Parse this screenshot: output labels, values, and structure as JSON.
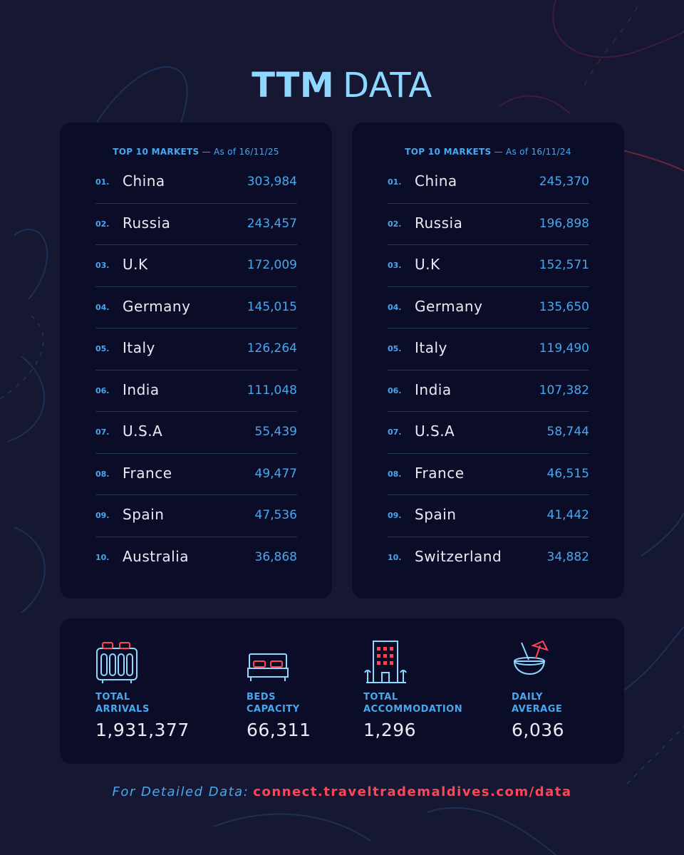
{
  "header": {
    "title_bold": "TTM",
    "title_light": "DATA"
  },
  "panels": [
    {
      "heading": "TOP 10 MARKETS",
      "as_of": "— As of 16/11/25",
      "rows": [
        {
          "rank": "01.",
          "country": "China",
          "value": "303,984"
        },
        {
          "rank": "02.",
          "country": "Russia",
          "value": "243,457"
        },
        {
          "rank": "03.",
          "country": "U.K",
          "value": "172,009"
        },
        {
          "rank": "04.",
          "country": "Germany",
          "value": "145,015"
        },
        {
          "rank": "05.",
          "country": "Italy",
          "value": "126,264"
        },
        {
          "rank": "06.",
          "country": "India",
          "value": "111,048"
        },
        {
          "rank": "07.",
          "country": "U.S.A",
          "value": "55,439"
        },
        {
          "rank": "08.",
          "country": "France",
          "value": "49,477"
        },
        {
          "rank": "09.",
          "country": "Spain",
          "value": "47,536"
        },
        {
          "rank": "10.",
          "country": "Australia",
          "value": "36,868"
        }
      ]
    },
    {
      "heading": "TOP 10 MARKETS",
      "as_of": "— As of 16/11/24",
      "rows": [
        {
          "rank": "01.",
          "country": "China",
          "value": "245,370"
        },
        {
          "rank": "02.",
          "country": "Russia",
          "value": "196,898"
        },
        {
          "rank": "03.",
          "country": "U.K",
          "value": "152,571"
        },
        {
          "rank": "04.",
          "country": "Germany",
          "value": "135,650"
        },
        {
          "rank": "05.",
          "country": "Italy",
          "value": "119,490"
        },
        {
          "rank": "06.",
          "country": "India",
          "value": "107,382"
        },
        {
          "rank": "07.",
          "country": "U.S.A",
          "value": "58,744"
        },
        {
          "rank": "08.",
          "country": "France",
          "value": "46,515"
        },
        {
          "rank": "09.",
          "country": "Spain",
          "value": "41,442"
        },
        {
          "rank": "10.",
          "country": "Switzerland",
          "value": "34,882"
        }
      ]
    }
  ],
  "stats": [
    {
      "icon": "luggage-icon",
      "label_line1": "TOTAL",
      "label_line2": "ARRIVALS",
      "value": "1,931,377"
    },
    {
      "icon": "bed-icon",
      "label_line1": "BEDS",
      "label_line2": "CAPACITY",
      "value": "66,311"
    },
    {
      "icon": "hotel-building-icon",
      "label_line1": "TOTAL",
      "label_line2": "ACCOMMODATION",
      "value": "1,296"
    },
    {
      "icon": "coconut-drink-icon",
      "label_line1": "DAILY",
      "label_line2": "AVERAGE",
      "value": "6,036"
    }
  ],
  "footer": {
    "label": "For Detailed Data:",
    "link": "connect.traveltrademaldives.com/data"
  },
  "colors": {
    "background": "#161833",
    "panel": "#0a0c28",
    "accent_blue": "#48a8ee",
    "title_blue": "#8ed8ff",
    "accent_red": "#ff4656",
    "text": "#e8ecf4"
  }
}
